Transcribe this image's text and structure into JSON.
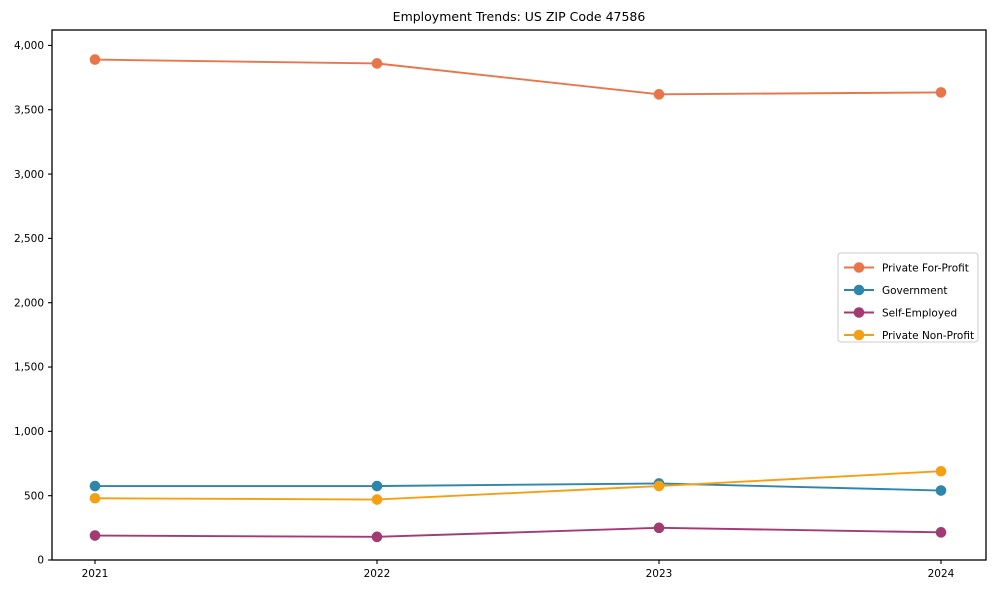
{
  "chart_data": {
    "type": "line",
    "title": "Employment Trends: US ZIP Code 47586",
    "categories": [
      "2021",
      "2022",
      "2023",
      "2024"
    ],
    "series": [
      {
        "name": "Private For-Profit",
        "color": "#e8764a",
        "values": [
          3890,
          3860,
          3620,
          3635
        ]
      },
      {
        "name": "Government",
        "color": "#2e86ab",
        "values": [
          575,
          575,
          595,
          540
        ]
      },
      {
        "name": "Self-Employed",
        "color": "#a23b72",
        "values": [
          190,
          180,
          250,
          215
        ]
      },
      {
        "name": "Private Non-Profit",
        "color": "#f5a013",
        "values": [
          480,
          470,
          575,
          690
        ]
      }
    ],
    "xlabel": "",
    "ylabel": "",
    "ylim": [
      0,
      4120
    ],
    "yticks": [
      0,
      500,
      1000,
      1500,
      2000,
      2500,
      3000,
      3500,
      4000
    ],
    "ytick_labels": [
      "0",
      "500",
      "1,000",
      "1,500",
      "2,000",
      "2,500",
      "3,000",
      "3,500",
      "4,000"
    ],
    "legend_position": "center right",
    "grid": false,
    "marker": "circle",
    "axis_color": "#000000",
    "legend_border_color": "#cccccc",
    "legend_background": "#ffffff"
  }
}
